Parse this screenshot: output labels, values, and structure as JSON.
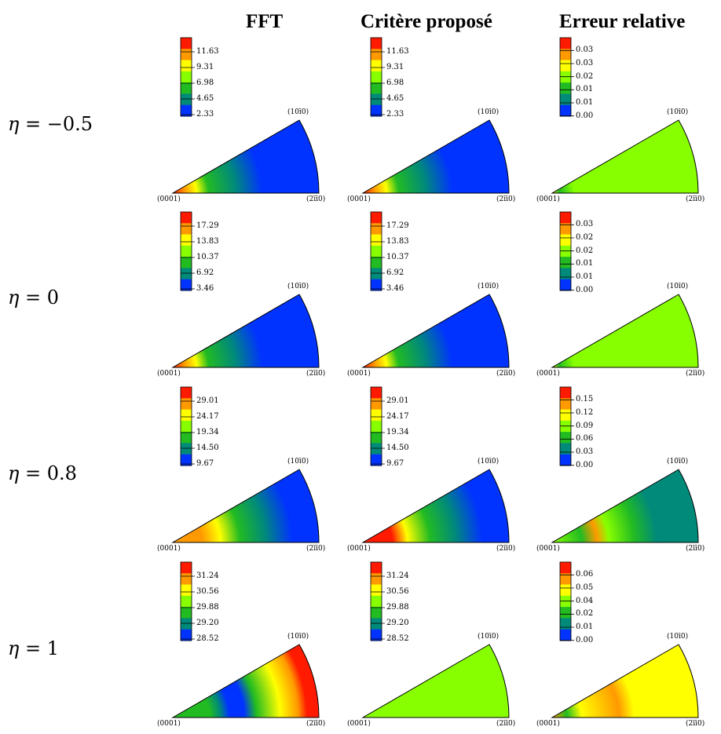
{
  "column_headers": [
    "FFT",
    "Critère proposé",
    "Erreur relative"
  ],
  "row_labels": [
    {
      "symbol": "η",
      "eq": " = ",
      "value": "−0.5"
    },
    {
      "symbol": "η",
      "eq": " = ",
      "value": "0"
    },
    {
      "symbol": "η",
      "eq": " = ",
      "value": "0.8"
    },
    {
      "symbol": "η",
      "eq": " = ",
      "value": "1"
    }
  ],
  "corner_labels": {
    "top": "(10ī0)",
    "left": "(0001)",
    "right": "(2īī0)"
  },
  "colors": {
    "red": "#ff1a00",
    "orange": "#ff9900",
    "yellow": "#ffff00",
    "lime": "#88ff00",
    "green": "#22bb22",
    "teal": "#008a7a",
    "blue": "#0033ff"
  },
  "panels": [
    [
      {
        "ticks": [
          "11.63",
          "9.31",
          "6.98",
          "4.65",
          "2.33"
        ],
        "fill": "fft_a"
      },
      {
        "ticks": [
          "11.63",
          "9.31",
          "6.98",
          "4.65",
          "2.33"
        ],
        "fill": "fft_a"
      },
      {
        "ticks": [
          "0.03",
          "0.03",
          "0.02",
          "0.01",
          "0.01",
          "0.00"
        ],
        "fill": "err_green"
      }
    ],
    [
      {
        "ticks": [
          "17.29",
          "13.83",
          "10.37",
          "6.92",
          "3.46"
        ],
        "fill": "fft_a"
      },
      {
        "ticks": [
          "17.29",
          "13.83",
          "10.37",
          "6.92",
          "3.46"
        ],
        "fill": "fft_a"
      },
      {
        "ticks": [
          "0.03",
          "0.02",
          "0.02",
          "0.01",
          "0.01",
          "0.00"
        ],
        "fill": "err_green"
      }
    ],
    [
      {
        "ticks": [
          "29.01",
          "24.17",
          "19.34",
          "14.50",
          "9.67"
        ],
        "fill": "fft_b"
      },
      {
        "ticks": [
          "29.01",
          "24.17",
          "19.34",
          "14.50",
          "9.67"
        ],
        "fill": "fft_b2"
      },
      {
        "ticks": [
          "0.15",
          "0.12",
          "0.09",
          "0.06",
          "0.03",
          "0.00"
        ],
        "fill": "err_teal"
      }
    ],
    [
      {
        "ticks": [
          "31.24",
          "30.56",
          "29.88",
          "29.20",
          "28.52"
        ],
        "fill": "fft_c"
      },
      {
        "ticks": [
          "31.24",
          "30.56",
          "29.88",
          "29.20",
          "28.52"
        ],
        "fill": "flat_lime"
      },
      {
        "ticks": [
          "0.06",
          "0.05",
          "0.04",
          "0.02",
          "0.01",
          "0.00"
        ],
        "fill": "err_yellow"
      }
    ]
  ]
}
